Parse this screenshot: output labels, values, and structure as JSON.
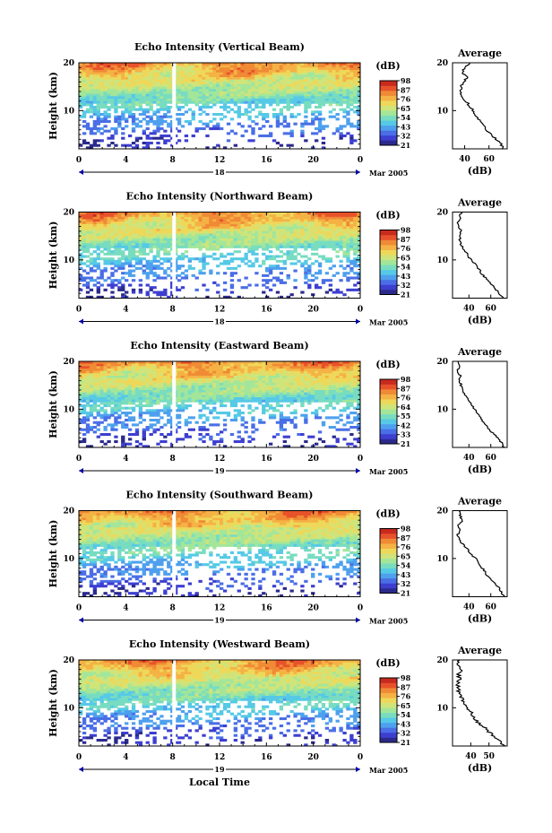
{
  "chart_data": [
    {
      "type": "heatmap",
      "title": "Echo Intensity (Vertical Beam)",
      "ylabel": "Height (km)",
      "x_ticks": [
        "0",
        "4",
        "8",
        "12",
        "16",
        "20",
        "0"
      ],
      "y_ticks": [
        "10",
        "20"
      ],
      "date_day": "18",
      "date_label": "Mar 2005",
      "colorbar": {
        "unit": "(dB)",
        "levels": [
          "21",
          "32",
          "43",
          "54",
          "65",
          "76",
          "87",
          "98"
        ]
      },
      "profile": {
        "title": "Average",
        "xlabel": "(dB)",
        "x_ticks": [
          "40",
          "60"
        ],
        "y_ticks": [
          "10",
          "20"
        ],
        "xlim": [
          30,
          75
        ],
        "ylim": [
          2,
          20
        ],
        "heights": [
          2,
          3,
          4,
          5,
          6,
          7,
          8,
          9,
          10,
          11,
          12,
          13,
          14,
          15,
          16,
          17,
          18,
          19,
          20
        ],
        "values": [
          72,
          70,
          66,
          62,
          58,
          55,
          52,
          49,
          47,
          44,
          41,
          38,
          37,
          37,
          39,
          42,
          38,
          40,
          44
        ]
      }
    },
    {
      "type": "heatmap",
      "title": "Echo Intensity (Northward Beam)",
      "ylabel": "Height (km)",
      "x_ticks": [
        "0",
        "4",
        "8",
        "12",
        "16",
        "20",
        "0"
      ],
      "y_ticks": [
        "10",
        "20"
      ],
      "date_day": "18",
      "date_label": "Mar 2005",
      "colorbar": {
        "unit": "(dB)",
        "levels": [
          "21",
          "32",
          "43",
          "54",
          "65",
          "76",
          "87",
          "98"
        ]
      },
      "profile": {
        "title": "Average",
        "xlabel": "(dB)",
        "x_ticks": [
          "40",
          "60"
        ],
        "y_ticks": [
          "10",
          "20"
        ],
        "xlim": [
          25,
          75
        ],
        "ylim": [
          2,
          20
        ],
        "heights": [
          2,
          3,
          4,
          5,
          6,
          7,
          8,
          9,
          10,
          11,
          12,
          13,
          14,
          15,
          16,
          17,
          18,
          19,
          20
        ],
        "values": [
          72,
          68,
          64,
          60,
          56,
          52,
          49,
          46,
          42,
          39,
          36,
          33,
          32,
          31,
          33,
          31,
          30,
          32,
          33
        ]
      }
    },
    {
      "type": "heatmap",
      "title": "Echo Intensity (Eastward Beam)",
      "ylabel": "Height (km)",
      "x_ticks": [
        "0",
        "4",
        "8",
        "12",
        "16",
        "20",
        "0"
      ],
      "y_ticks": [
        "10",
        "20"
      ],
      "date_day": "19",
      "date_label": "Mar 2005",
      "colorbar": {
        "unit": "(dB)",
        "levels": [
          "21",
          "33",
          "42",
          "55",
          "64",
          "76",
          "87",
          "98"
        ]
      },
      "profile": {
        "title": "Average",
        "xlabel": "(dB)",
        "x_ticks": [
          "40",
          "60"
        ],
        "y_ticks": [
          "10",
          "20"
        ],
        "xlim": [
          25,
          75
        ],
        "ylim": [
          2,
          20
        ],
        "heights": [
          2,
          3,
          4,
          5,
          6,
          7,
          8,
          9,
          10,
          11,
          12,
          13,
          14,
          15,
          16,
          17,
          18,
          19,
          20
        ],
        "values": [
          72,
          70,
          66,
          62,
          58,
          54,
          51,
          48,
          45,
          42,
          39,
          36,
          34,
          33,
          31,
          32,
          30,
          31,
          30
        ]
      }
    },
    {
      "type": "heatmap",
      "title": "Echo Intensity (Southward Beam)",
      "ylabel": "Height (km)",
      "x_ticks": [
        "0",
        "4",
        "8",
        "12",
        "16",
        "20",
        "0"
      ],
      "y_ticks": [
        "10",
        "20"
      ],
      "date_day": "19",
      "date_label": "Mar 2005",
      "colorbar": {
        "unit": "(dB)",
        "levels": [
          "21",
          "32",
          "43",
          "54",
          "65",
          "76",
          "87",
          "98"
        ]
      },
      "profile": {
        "title": "Average",
        "xlabel": "(dB)",
        "x_ticks": [
          "40",
          "60"
        ],
        "y_ticks": [
          "10",
          "20"
        ],
        "xlim": [
          25,
          75
        ],
        "ylim": [
          2,
          20
        ],
        "heights": [
          2,
          3,
          4,
          5,
          6,
          7,
          8,
          9,
          10,
          11,
          12,
          13,
          14,
          15,
          16,
          17,
          18,
          19,
          20
        ],
        "values": [
          72,
          70,
          67,
          63,
          59,
          55,
          52,
          49,
          46,
          42,
          38,
          34,
          31,
          30,
          31,
          30,
          34,
          32,
          31
        ]
      }
    },
    {
      "type": "heatmap",
      "title": "Echo Intensity (Westward Beam)",
      "ylabel": "Height (km)",
      "x_ticks": [
        "0",
        "4",
        "8",
        "12",
        "16",
        "20",
        "0"
      ],
      "y_ticks": [
        "10",
        "20"
      ],
      "date_day": "19",
      "date_label": "Mar 2005",
      "xlabel": "Local Time",
      "colorbar": {
        "unit": "(dB)",
        "levels": [
          "21",
          "32",
          "43",
          "54",
          "65",
          "76",
          "87",
          "98"
        ]
      },
      "profile": {
        "title": "Average",
        "xlabel": "(dB)",
        "x_ticks": [
          "40",
          "50"
        ],
        "y_ticks": [
          "10",
          "20"
        ],
        "xlim": [
          30,
          60
        ],
        "ylim": [
          2,
          20
        ],
        "heights": [
          2,
          3,
          4,
          5,
          6,
          7,
          8,
          9,
          10,
          11,
          12,
          13,
          14,
          15,
          16,
          17,
          18,
          19,
          20
        ],
        "values": [
          58,
          56,
          53,
          50,
          47,
          44,
          42,
          40,
          38,
          36,
          35,
          34,
          33,
          33,
          34,
          33,
          35,
          33,
          34
        ]
      }
    }
  ]
}
